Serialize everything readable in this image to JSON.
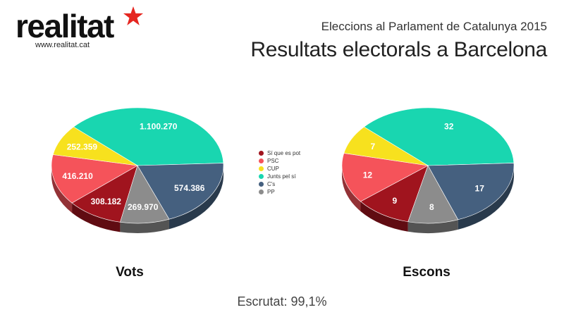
{
  "brand": {
    "name": "realitat",
    "url": "www.realitat.cat",
    "star_color": "#e52620"
  },
  "header": {
    "subtitle": "Eleccions al Parlament de Catalunya 2015",
    "title": "Resultats electorals a Barcelona"
  },
  "legend": [
    {
      "label": "Sí que es pot",
      "color": "#a0141e"
    },
    {
      "label": "PSC",
      "color": "#f5535a"
    },
    {
      "label": "CUP",
      "color": "#f7e11e"
    },
    {
      "label": "Junts pel sí",
      "color": "#19d6b0"
    },
    {
      "label": "C's",
      "color": "#45607f"
    },
    {
      "label": "PP",
      "color": "#8c8c8c"
    }
  ],
  "footer": "Escrutat: 99,1%",
  "chart_data": [
    {
      "type": "pie",
      "title": "Vots",
      "slices": [
        {
          "party": "Junts pel sí",
          "value": 1100270,
          "label": "1.100.270",
          "color": "#19d6b0"
        },
        {
          "party": "C's",
          "value": 574386,
          "label": "574.386",
          "color": "#45607f"
        },
        {
          "party": "PP",
          "value": 269970,
          "label": "269.970",
          "color": "#8c8c8c"
        },
        {
          "party": "Sí que es pot",
          "value": 308182,
          "label": "308.182",
          "color": "#a0141e"
        },
        {
          "party": "PSC",
          "value": 416210,
          "label": "416.210",
          "color": "#f5535a"
        },
        {
          "party": "CUP",
          "value": 252359,
          "label": "252.359",
          "color": "#f7e11e"
        }
      ]
    },
    {
      "type": "pie",
      "title": "Escons",
      "slices": [
        {
          "party": "Junts pel sí",
          "value": 32,
          "label": "32",
          "color": "#19d6b0"
        },
        {
          "party": "C's",
          "value": 17,
          "label": "17",
          "color": "#45607f"
        },
        {
          "party": "PP",
          "value": 8,
          "label": "8",
          "color": "#8c8c8c"
        },
        {
          "party": "Sí que es pot",
          "value": 9,
          "label": "9",
          "color": "#a0141e"
        },
        {
          "party": "PSC",
          "value": 12,
          "label": "12",
          "color": "#f5535a"
        },
        {
          "party": "CUP",
          "value": 7,
          "label": "7",
          "color": "#f7e11e"
        }
      ]
    }
  ]
}
